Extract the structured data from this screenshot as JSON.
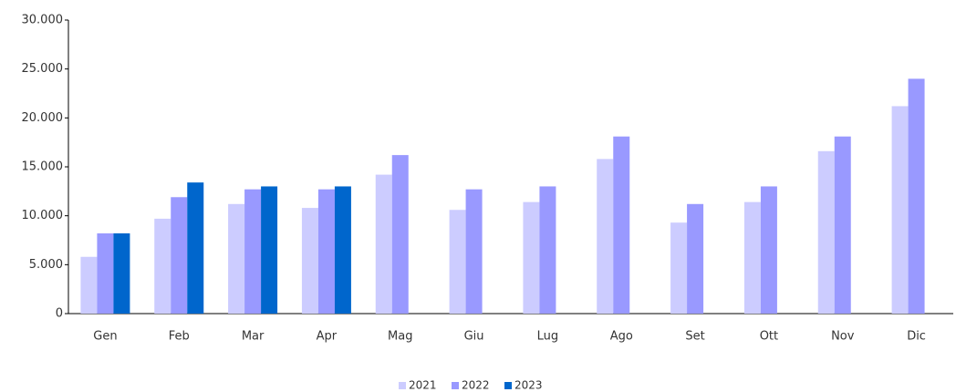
{
  "chart_data": {
    "type": "bar",
    "categories": [
      "Gen",
      "Feb",
      "Mar",
      "Apr",
      "Mag",
      "Giu",
      "Lug",
      "Ago",
      "Set",
      "Ott",
      "Nov",
      "Dic"
    ],
    "series": [
      {
        "name": "2021",
        "color": "#ccccff",
        "values": [
          5800,
          9700,
          11200,
          10800,
          14200,
          10600,
          11400,
          15800,
          9300,
          11400,
          16600,
          21200
        ]
      },
      {
        "name": "2022",
        "color": "#9999ff",
        "values": [
          8200,
          11900,
          12700,
          12700,
          16200,
          12700,
          13000,
          18100,
          11200,
          13000,
          18100,
          24000
        ]
      },
      {
        "name": "2023",
        "color": "#0066cc",
        "values": [
          8200,
          13400,
          13000,
          13000,
          null,
          null,
          null,
          null,
          null,
          null,
          null,
          null
        ]
      }
    ],
    "ylim": [
      0,
      30000
    ],
    "yticks": [
      0,
      {
        "value": 5000,
        "label": "5.000"
      },
      {
        "value": 10000,
        "label": "10.000"
      },
      {
        "value": 15000,
        "label": "15.000"
      },
      {
        "value": 20000,
        "label": "20.000"
      },
      {
        "value": 25000,
        "label": "25.000"
      },
      {
        "value": 30000,
        "label": "30.000"
      }
    ],
    "grid": false,
    "legend": "bottom"
  }
}
